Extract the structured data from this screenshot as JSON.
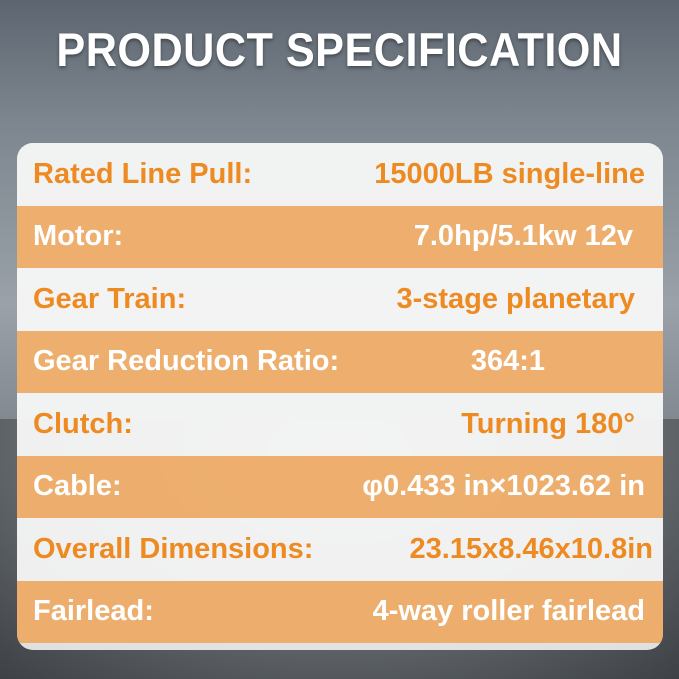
{
  "title": "PRODUCT SPECIFICATION",
  "colors": {
    "accent_orange": "#ee8a22",
    "band_orange": "#eea65c",
    "panel": "#f5f5f5"
  },
  "specs": [
    {
      "label": "Rated Line Pull:",
      "value": "15000LB single-line"
    },
    {
      "label": "Motor:",
      "value": "7.0hp/5.1kw 12v"
    },
    {
      "label": "Gear Train:",
      "value": "3-stage planetary"
    },
    {
      "label": "Gear Reduction Ratio:",
      "value": "364:1"
    },
    {
      "label": "Clutch:",
      "value": "Turning 180°"
    },
    {
      "label": "Cable:",
      "value": "φ0.433 in×1023.62 in"
    },
    {
      "label": "Overall Dimensions:",
      "value": "23.15x8.46x10.8in"
    },
    {
      "label": "Fairlead:",
      "value": "4-way roller fairlead"
    }
  ]
}
